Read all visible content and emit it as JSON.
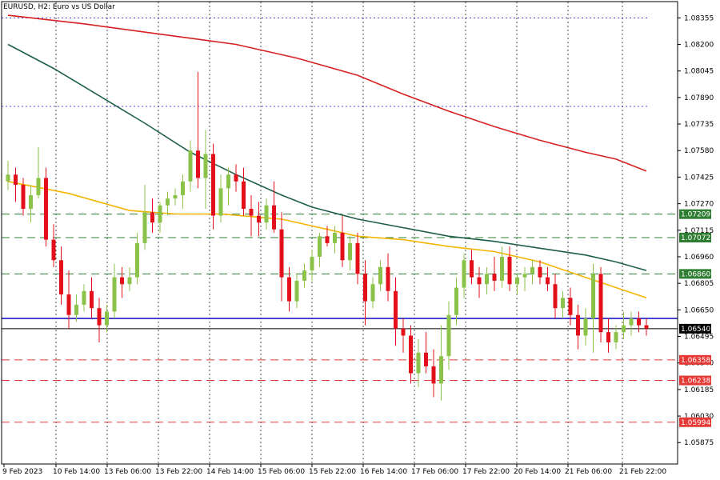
{
  "header": {
    "title": "EURUSD, H2:  Euro vs US Dollar"
  },
  "colors": {
    "bull": "#8BC34A",
    "bear": "#E3101B",
    "ma_fast": "#F5B400",
    "ma_mid": "#1D5E4A",
    "ma_slow": "#D62020",
    "support_blue": "#1E1EC8",
    "green_level": "#2E7D32",
    "red_level": "#E53935",
    "grid": "#1a1a1a"
  },
  "chart_data": {
    "type": "candlestick",
    "symbol": "EURUSD",
    "timeframe": "H2",
    "ylim": [
      1.0575,
      1.0845
    ],
    "y_ticks": [
      "1.08355",
      "1.08200",
      "1.08045",
      "1.07890",
      "1.07735",
      "1.07580",
      "1.07425",
      "1.07270",
      "1.07115",
      "1.06960",
      "1.06805",
      "1.06650",
      "1.06495",
      "1.06340",
      "1.06185",
      "1.06030",
      "1.05875"
    ],
    "x_tick_labels": [
      "9 Feb 2023",
      "10 Feb 14:00",
      "13 Feb 06:00",
      "13 Feb 22:00",
      "14 Feb 14:00",
      "15 Feb 06:00",
      "15 Feb 22:00",
      "16 Feb 14:00",
      "17 Feb 06:00",
      "17 Feb 22:00",
      "20 Feb 14:00",
      "21 Feb 06:00",
      "21 Feb 22:00"
    ],
    "current_price": "1.06540",
    "levels": [
      {
        "price": 1.07209,
        "label": "1.07209",
        "color_key": "green_level",
        "style": "dash",
        "show_label": true
      },
      {
        "price": 1.07072,
        "label": "1.07072",
        "color_key": "green_level",
        "style": "dash",
        "show_label": true
      },
      {
        "price": 1.0686,
        "label": "1.06860",
        "color_key": "green_level",
        "style": "dash",
        "show_label": true
      },
      {
        "price": 1.06358,
        "label": "1.06358",
        "color_key": "red_level",
        "style": "dash",
        "show_label": true
      },
      {
        "price": 1.06238,
        "label": "1.06238",
        "color_key": "red_level",
        "style": "dash",
        "show_label": true
      },
      {
        "price": 1.05994,
        "label": "1.05994",
        "color_key": "red_level",
        "style": "dash",
        "show_label": true
      },
      {
        "price": 1.066,
        "label": "",
        "color_key": "support_blue",
        "style": "solid",
        "show_label": false
      }
    ],
    "dotted_levels": [
      1.08355,
      1.07838
    ],
    "candles": [
      [
        1.074,
        1.0752,
        1.0735,
        1.0744
      ],
      [
        1.0744,
        1.0748,
        1.0728,
        1.0738
      ],
      [
        1.0738,
        1.0742,
        1.072,
        1.0724
      ],
      [
        1.0724,
        1.0738,
        1.0716,
        1.0732
      ],
      [
        1.0732,
        1.076,
        1.073,
        1.0742
      ],
      [
        1.0742,
        1.0748,
        1.0702,
        1.0706
      ],
      [
        1.0706,
        1.0715,
        1.069,
        1.0694
      ],
      [
        1.0694,
        1.0702,
        1.0668,
        1.0674
      ],
      [
        1.0674,
        1.0688,
        1.0654,
        1.0662
      ],
      [
        1.0662,
        1.0674,
        1.0658,
        1.0668
      ],
      [
        1.0668,
        1.068,
        1.0664,
        1.0676
      ],
      [
        1.0676,
        1.0684,
        1.066,
        1.0666
      ],
      [
        1.0666,
        1.0672,
        1.0646,
        1.0656
      ],
      [
        1.0656,
        1.0668,
        1.0652,
        1.0664
      ],
      [
        1.0664,
        1.0692,
        1.066,
        1.0684
      ],
      [
        1.0684,
        1.069,
        1.0672,
        1.068
      ],
      [
        1.068,
        1.069,
        1.0676,
        1.0684
      ],
      [
        1.0684,
        1.071,
        1.068,
        1.0704
      ],
      [
        1.0704,
        1.0738,
        1.07,
        1.0722
      ],
      [
        1.0722,
        1.073,
        1.071,
        1.0716
      ],
      [
        1.0716,
        1.0728,
        1.071,
        1.0726
      ],
      [
        1.0726,
        1.0734,
        1.072,
        1.073
      ],
      [
        1.073,
        1.0736,
        1.0726,
        1.0732
      ],
      [
        1.0732,
        1.0744,
        1.0724,
        1.074
      ],
      [
        1.074,
        1.0764,
        1.0734,
        1.0758
      ],
      [
        1.0758,
        1.0804,
        1.0736,
        1.0742
      ],
      [
        1.0742,
        1.077,
        1.0724,
        1.0756
      ],
      [
        1.0756,
        1.0762,
        1.0712,
        1.072
      ],
      [
        1.072,
        1.0744,
        1.0716,
        1.0736
      ],
      [
        1.0736,
        1.0748,
        1.0726,
        1.0744
      ],
      [
        1.0744,
        1.075,
        1.0734,
        1.074
      ],
      [
        1.074,
        1.0748,
        1.072,
        1.0724
      ],
      [
        1.0724,
        1.0732,
        1.0708,
        1.072
      ],
      [
        1.072,
        1.0728,
        1.0708,
        1.0716
      ],
      [
        1.0716,
        1.073,
        1.0712,
        1.0726
      ],
      [
        1.0726,
        1.074,
        1.071,
        1.0712
      ],
      [
        1.0712,
        1.0722,
        1.067,
        1.0684
      ],
      [
        1.0684,
        1.069,
        1.0664,
        1.067
      ],
      [
        1.067,
        1.0686,
        1.0666,
        1.0682
      ],
      [
        1.0682,
        1.0692,
        1.0678,
        1.0688
      ],
      [
        1.0688,
        1.07,
        1.0682,
        1.0696
      ],
      [
        1.0696,
        1.071,
        1.069,
        1.0708
      ],
      [
        1.0708,
        1.0714,
        1.0702,
        1.0704
      ],
      [
        1.0704,
        1.0714,
        1.0698,
        1.071
      ],
      [
        1.071,
        1.072,
        1.069,
        1.0694
      ],
      [
        1.0694,
        1.0708,
        1.0688,
        1.0704
      ],
      [
        1.0704,
        1.071,
        1.068,
        1.0686
      ],
      [
        1.0686,
        1.0694,
        1.0656,
        1.067
      ],
      [
        1.067,
        1.0684,
        1.0666,
        1.068
      ],
      [
        1.068,
        1.0694,
        1.0676,
        1.069
      ],
      [
        1.069,
        1.0698,
        1.067,
        1.0676
      ],
      [
        1.0676,
        1.0684,
        1.0644,
        1.0654
      ],
      [
        1.0654,
        1.066,
        1.064,
        1.065
      ],
      [
        1.065,
        1.0656,
        1.0622,
        1.0628
      ],
      [
        1.0628,
        1.0648,
        1.062,
        1.064
      ],
      [
        1.064,
        1.0652,
        1.0628,
        1.0632
      ],
      [
        1.0632,
        1.0642,
        1.0614,
        1.0622
      ],
      [
        1.0622,
        1.0656,
        1.0612,
        1.0638
      ],
      [
        1.0638,
        1.067,
        1.063,
        1.0662
      ],
      [
        1.0662,
        1.0684,
        1.0656,
        1.0678
      ],
      [
        1.0678,
        1.0698,
        1.0672,
        1.0694
      ],
      [
        1.0694,
        1.07,
        1.068,
        1.0684
      ],
      [
        1.0684,
        1.069,
        1.0672,
        1.068
      ],
      [
        1.068,
        1.069,
        1.0674,
        1.0686
      ],
      [
        1.0686,
        1.0696,
        1.0676,
        1.0682
      ],
      [
        1.0682,
        1.0702,
        1.0678,
        1.0696
      ],
      [
        1.0696,
        1.0702,
        1.0676,
        1.068
      ],
      [
        1.068,
        1.0686,
        1.0674,
        1.0684
      ],
      [
        1.0684,
        1.069,
        1.0676,
        1.0686
      ],
      [
        1.0686,
        1.0694,
        1.068,
        1.069
      ],
      [
        1.069,
        1.0694,
        1.068,
        1.0684
      ],
      [
        1.0684,
        1.069,
        1.0676,
        1.068
      ],
      [
        1.068,
        1.0686,
        1.066,
        1.0666
      ],
      [
        1.0666,
        1.0676,
        1.066,
        1.0672
      ],
      [
        1.0672,
        1.0678,
        1.0656,
        1.0662
      ],
      [
        1.0662,
        1.0668,
        1.0642,
        1.065
      ],
      [
        1.065,
        1.0666,
        1.0644,
        1.066
      ],
      [
        1.066,
        1.0692,
        1.064,
        1.0686
      ],
      [
        1.0686,
        1.069,
        1.0646,
        1.0652
      ],
      [
        1.0652,
        1.066,
        1.064,
        1.0646
      ],
      [
        1.0646,
        1.0656,
        1.0642,
        1.0652
      ],
      [
        1.0652,
        1.0664,
        1.0648,
        1.0656
      ],
      [
        1.0656,
        1.0664,
        1.065,
        1.066
      ],
      [
        1.066,
        1.0664,
        1.0652,
        1.0656
      ],
      [
        1.0656,
        1.066,
        1.065,
        1.0654
      ]
    ],
    "ma_fast": [
      [
        0,
        1.074
      ],
      [
        8,
        1.0733
      ],
      [
        16,
        1.0723
      ],
      [
        22,
        1.0721
      ],
      [
        28,
        1.0721
      ],
      [
        36,
        1.0718
      ],
      [
        40,
        1.0714
      ],
      [
        46,
        1.0708
      ],
      [
        52,
        1.0706
      ],
      [
        58,
        1.0702
      ],
      [
        64,
        1.0699
      ],
      [
        70,
        1.0693
      ],
      [
        76,
        1.0684
      ],
      [
        80,
        1.0678
      ],
      [
        84,
        1.0672
      ]
    ],
    "ma_mid": [
      [
        0,
        1.082
      ],
      [
        6,
        1.0806
      ],
      [
        12,
        1.079
      ],
      [
        18,
        1.0774
      ],
      [
        24,
        1.0757
      ],
      [
        30,
        1.0744
      ],
      [
        36,
        1.0732
      ],
      [
        40,
        1.0725
      ],
      [
        46,
        1.0718
      ],
      [
        52,
        1.0713
      ],
      [
        58,
        1.0708
      ],
      [
        64,
        1.0705
      ],
      [
        70,
        1.0701
      ],
      [
        76,
        1.0697
      ],
      [
        80,
        1.0693
      ],
      [
        84,
        1.0688
      ]
    ],
    "ma_slow": [
      [
        0,
        1.0837
      ],
      [
        10,
        1.0832
      ],
      [
        20,
        1.0826
      ],
      [
        30,
        1.082
      ],
      [
        38,
        1.0812
      ],
      [
        46,
        1.0802
      ],
      [
        52,
        1.0791
      ],
      [
        58,
        1.0781
      ],
      [
        64,
        1.0772
      ],
      [
        70,
        1.0764
      ],
      [
        76,
        1.0757
      ],
      [
        80,
        1.0753
      ],
      [
        84,
        1.0746
      ]
    ]
  }
}
